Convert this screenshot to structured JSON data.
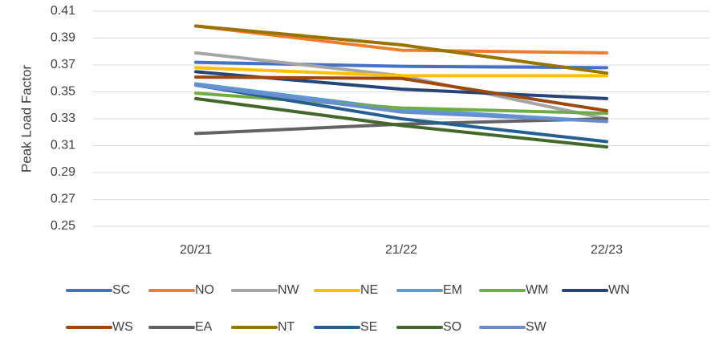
{
  "chart_data": {
    "type": "line",
    "y_label": "Peak Load Factor",
    "categories": [
      "20/21",
      "21/22",
      "22/23"
    ],
    "ylim": [
      0.25,
      0.41
    ],
    "yticks": [
      0.25,
      0.27,
      0.29,
      0.31,
      0.33,
      0.35,
      0.37,
      0.39,
      0.41
    ],
    "grid": true,
    "series": [
      {
        "name": "SC",
        "color": "#4472c4",
        "values": [
          0.372,
          0.369,
          0.368
        ]
      },
      {
        "name": "NO",
        "color": "#ed7d31",
        "values": [
          0.399,
          0.381,
          0.379
        ]
      },
      {
        "name": "NW",
        "color": "#a5a5a5",
        "values": [
          0.379,
          0.362,
          0.33
        ]
      },
      {
        "name": "NE",
        "color": "#ffc000",
        "values": [
          0.368,
          0.362,
          0.362
        ]
      },
      {
        "name": "EM",
        "color": "#5b9bd5",
        "values": [
          0.356,
          0.337,
          0.328
        ]
      },
      {
        "name": "WM",
        "color": "#70ad47",
        "values": [
          0.349,
          0.338,
          0.334
        ]
      },
      {
        "name": "WN",
        "color": "#264478",
        "values": [
          0.365,
          0.352,
          0.345
        ]
      },
      {
        "name": "WS",
        "color": "#9e480e",
        "values": [
          0.361,
          0.36,
          0.336
        ]
      },
      {
        "name": "EA",
        "color": "#636363",
        "values": [
          0.319,
          0.326,
          0.33
        ]
      },
      {
        "name": "NT",
        "color": "#997300",
        "values": [
          0.399,
          0.385,
          0.364
        ]
      },
      {
        "name": "SE",
        "color": "#255e91",
        "values": [
          0.355,
          0.33,
          0.313
        ]
      },
      {
        "name": "SO",
        "color": "#43682b",
        "values": [
          0.345,
          0.325,
          0.309
        ]
      },
      {
        "name": "SW",
        "color": "#698ed0",
        "values": [
          0.355,
          0.335,
          0.328
        ]
      }
    ]
  }
}
